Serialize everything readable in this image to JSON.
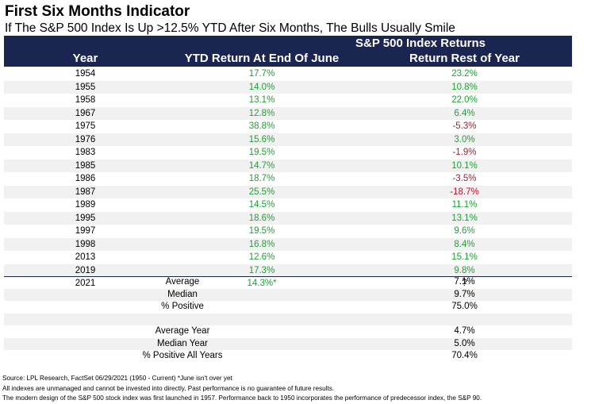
{
  "title": "First Six Months Indicator",
  "subtitle": "If The S&P 500 Index Is Up >12.5% YTD After Six Months, The Bulls Usually Smile",
  "table": {
    "group_header": "S&P 500 Index Returns",
    "col_year": "Year",
    "col_ytd": "YTD Return At End Of June",
    "col_rest": "Return Rest of Year",
    "rows": [
      {
        "year": "1954",
        "ytd": "17.7%",
        "rest": "23.2%",
        "rest_sign": "pos"
      },
      {
        "year": "1955",
        "ytd": "14.0%",
        "rest": "10.8%",
        "rest_sign": "pos"
      },
      {
        "year": "1958",
        "ytd": "13.1%",
        "rest": "22.0%",
        "rest_sign": "pos"
      },
      {
        "year": "1967",
        "ytd": "12.8%",
        "rest": "6.4%",
        "rest_sign": "pos"
      },
      {
        "year": "1975",
        "ytd": "38.8%",
        "rest": "-5.3%",
        "rest_sign": "neg"
      },
      {
        "year": "1976",
        "ytd": "15.6%",
        "rest": "3.0%",
        "rest_sign": "pos"
      },
      {
        "year": "1983",
        "ytd": "19.5%",
        "rest": "-1.9%",
        "rest_sign": "neg"
      },
      {
        "year": "1985",
        "ytd": "14.7%",
        "rest": "10.1%",
        "rest_sign": "pos"
      },
      {
        "year": "1986",
        "ytd": "18.7%",
        "rest": "-3.5%",
        "rest_sign": "neg"
      },
      {
        "year": "1987",
        "ytd": "25.5%",
        "rest": "-18.7%",
        "rest_sign": "neg"
      },
      {
        "year": "1989",
        "ytd": "14.5%",
        "rest": "11.1%",
        "rest_sign": "pos"
      },
      {
        "year": "1995",
        "ytd": "18.6%",
        "rest": "13.1%",
        "rest_sign": "pos"
      },
      {
        "year": "1997",
        "ytd": "19.5%",
        "rest": "9.6%",
        "rest_sign": "pos"
      },
      {
        "year": "1998",
        "ytd": "16.8%",
        "rest": "8.4%",
        "rest_sign": "pos"
      },
      {
        "year": "2013",
        "ytd": "12.6%",
        "rest": "15.1%",
        "rest_sign": "pos"
      },
      {
        "year": "2019",
        "ytd": "17.3%",
        "rest": "9.8%",
        "rest_sign": "pos"
      },
      {
        "year": "2021",
        "ytd": "14.3%*",
        "rest": "?",
        "rest_sign": "none"
      }
    ],
    "stats": [
      {
        "label": "Average",
        "value": "7.1%"
      },
      {
        "label": "Median",
        "value": "9.7%"
      },
      {
        "label": "% Positive",
        "value": "75.0%"
      },
      {
        "label": "",
        "value": ""
      },
      {
        "label": "Average Year",
        "value": "4.7%"
      },
      {
        "label": "Median Year",
        "value": "5.0%"
      },
      {
        "label": "% Positive All Years",
        "value": "70.4%"
      }
    ]
  },
  "colors": {
    "header_bg": "#1a2551",
    "positive": "#22a037",
    "negative": "#b0182c"
  },
  "footer": {
    "line1": "Source: LPL Research, FactSet 06/29/2021 (1950 - Current)   *June isn't over yet",
    "line2": "All indexes are unmanaged and cannot be invested into directly. Past performance is no guarantee of future results.",
    "line3": "The modern design of the S&P 500 stock index was first launched in 1957. Performance back to 1950 incorporates the performance of predecessor index, the S&P 90."
  }
}
